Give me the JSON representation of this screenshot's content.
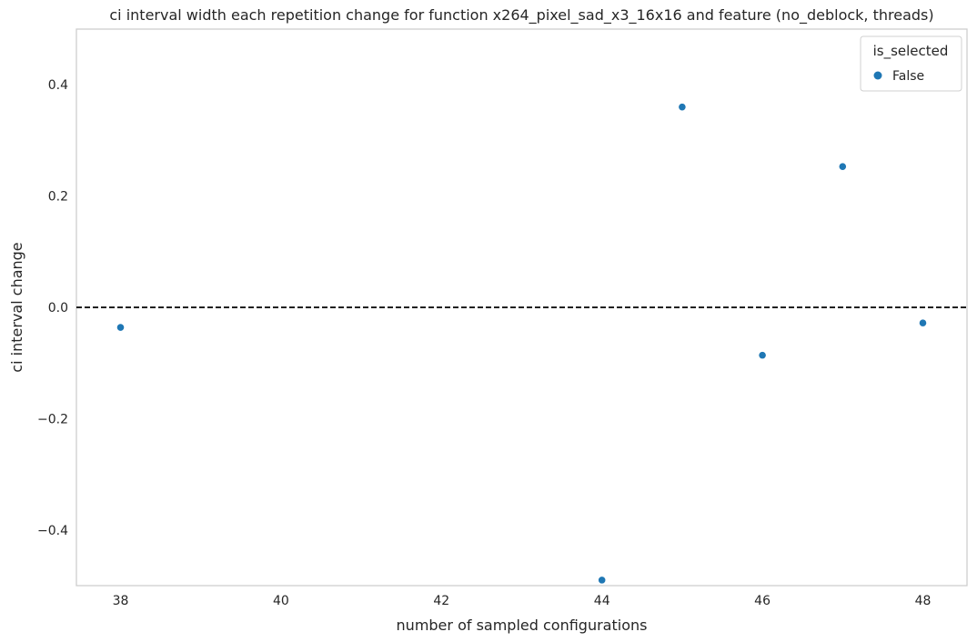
{
  "chart_data": {
    "type": "scatter",
    "title": "ci interval width each repetition change for function x264_pixel_sad_x3_16x16 and feature (no_deblock, threads)",
    "xlabel": "number of sampled configurations",
    "ylabel": "ci interval change",
    "xlim": [
      37.45,
      48.55
    ],
    "ylim": [
      -0.5,
      0.5
    ],
    "xticks": [
      38,
      40,
      42,
      44,
      46,
      48
    ],
    "yticks": [
      -0.4,
      -0.2,
      0.0,
      0.2,
      0.4
    ],
    "ytick_labels": [
      "−0.4",
      "−0.2",
      "0.0",
      "0.2",
      "0.4"
    ],
    "grid": false,
    "reference_line": {
      "y": 0.0,
      "style": "dashed",
      "color": "#000000"
    },
    "legend": {
      "title": "is_selected",
      "placement": "top-right",
      "entries": [
        {
          "label": "False",
          "color": "#1f77b4"
        }
      ]
    },
    "series": [
      {
        "name": "False",
        "color": "#1f77b4",
        "points": [
          {
            "x": 38,
            "y": -0.036
          },
          {
            "x": 44,
            "y": -0.49
          },
          {
            "x": 45,
            "y": 0.36
          },
          {
            "x": 46,
            "y": -0.086
          },
          {
            "x": 47,
            "y": 0.253
          },
          {
            "x": 48,
            "y": -0.028
          }
        ]
      }
    ]
  }
}
